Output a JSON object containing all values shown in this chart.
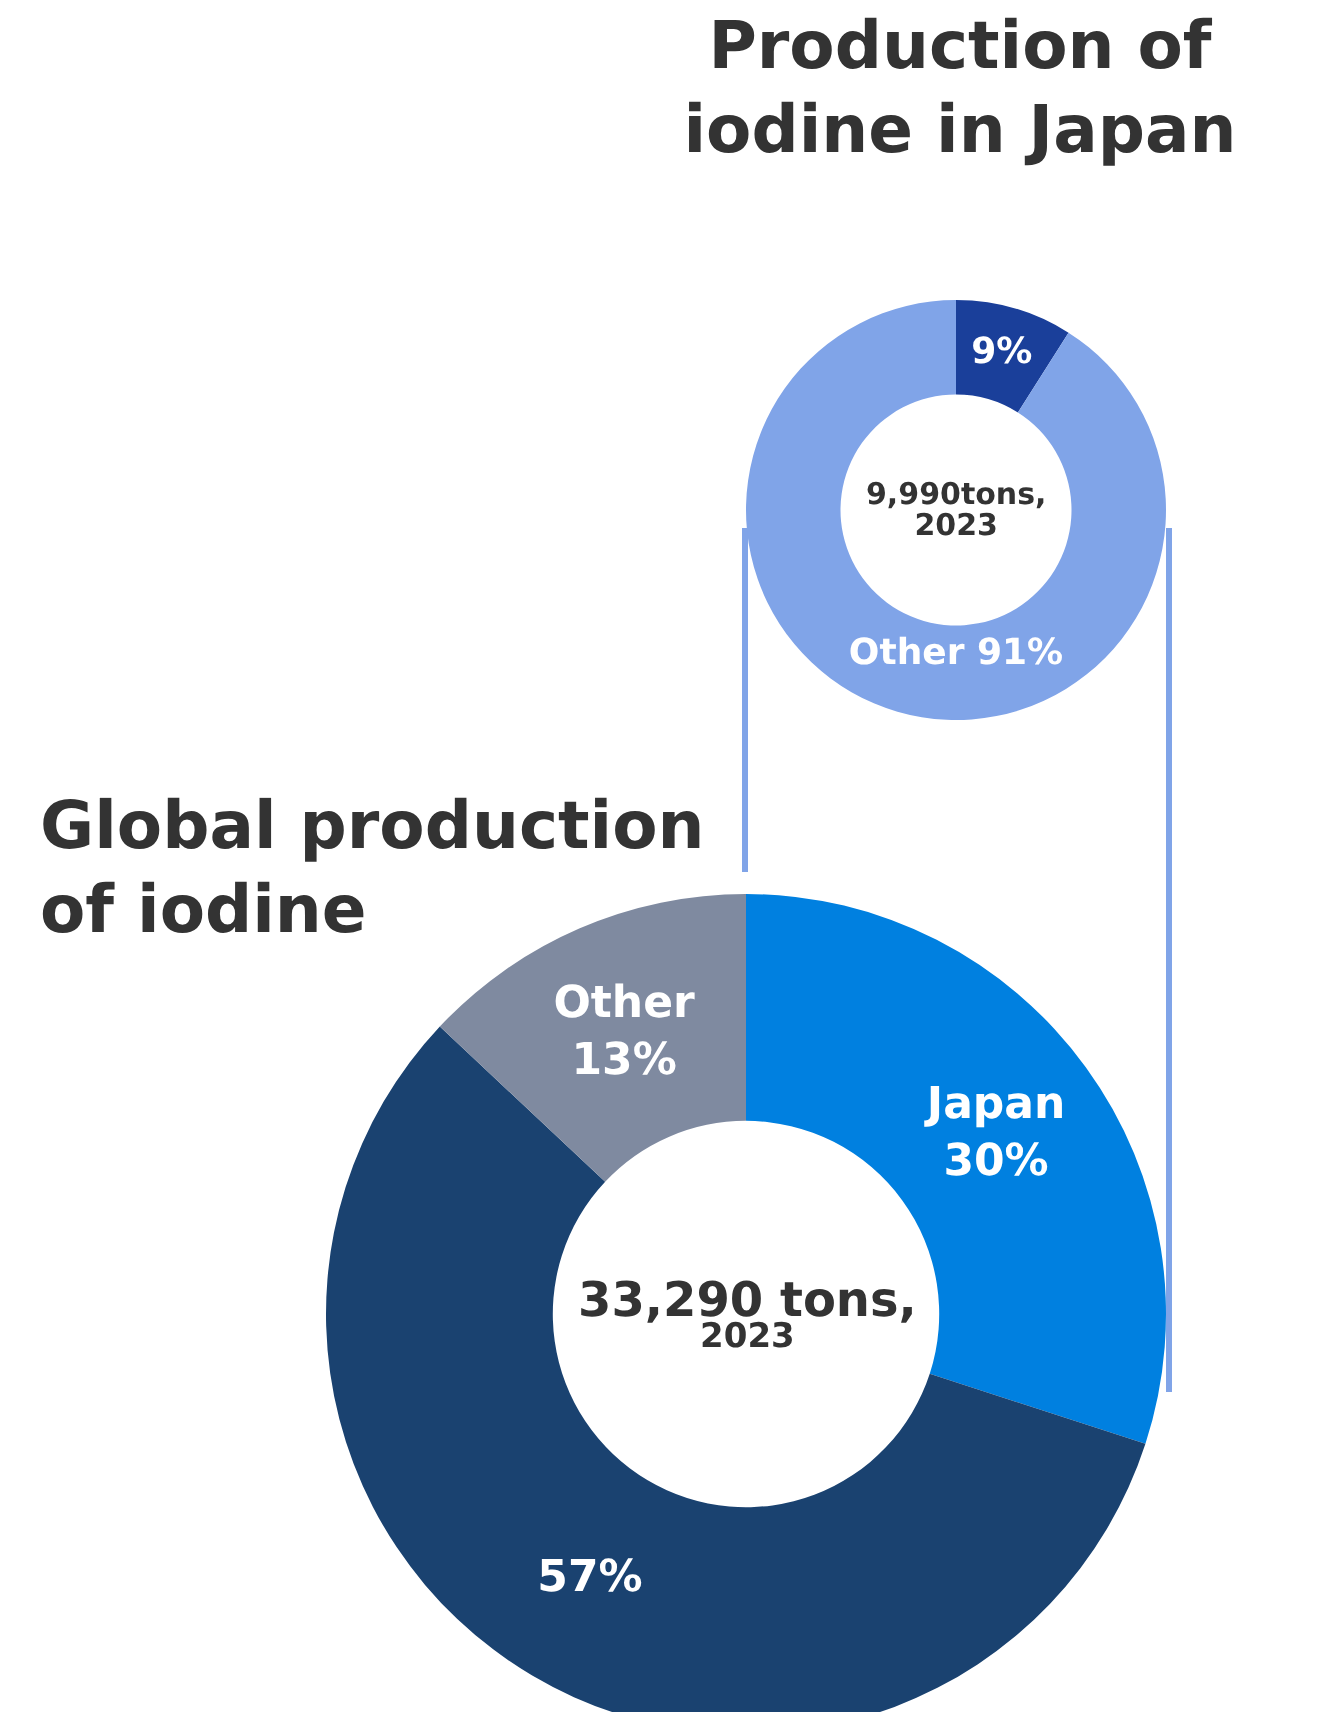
{
  "chart_data": [
    {
      "type": "donut",
      "title": "Production of iodine in Japan",
      "categories": [
        null,
        "Other"
      ],
      "values": [
        9,
        91
      ],
      "colors": [
        "#1a3f9a",
        "#80a4e8"
      ],
      "value_labels": [
        "9%",
        "91%"
      ],
      "annotations": [
        "9,990tons,\n2023"
      ]
    },
    {
      "type": "donut",
      "title": "Global production of iodine",
      "categories": [
        "Japan",
        null,
        "Other"
      ],
      "values": [
        30,
        57,
        13
      ],
      "colors": [
        "#0080e0",
        "#1a4270",
        "#7f8aa0"
      ],
      "value_labels": [
        "30%",
        "57%",
        "13%"
      ],
      "annotations": [
        "33,290 tons,\n2023"
      ]
    }
  ]
}
